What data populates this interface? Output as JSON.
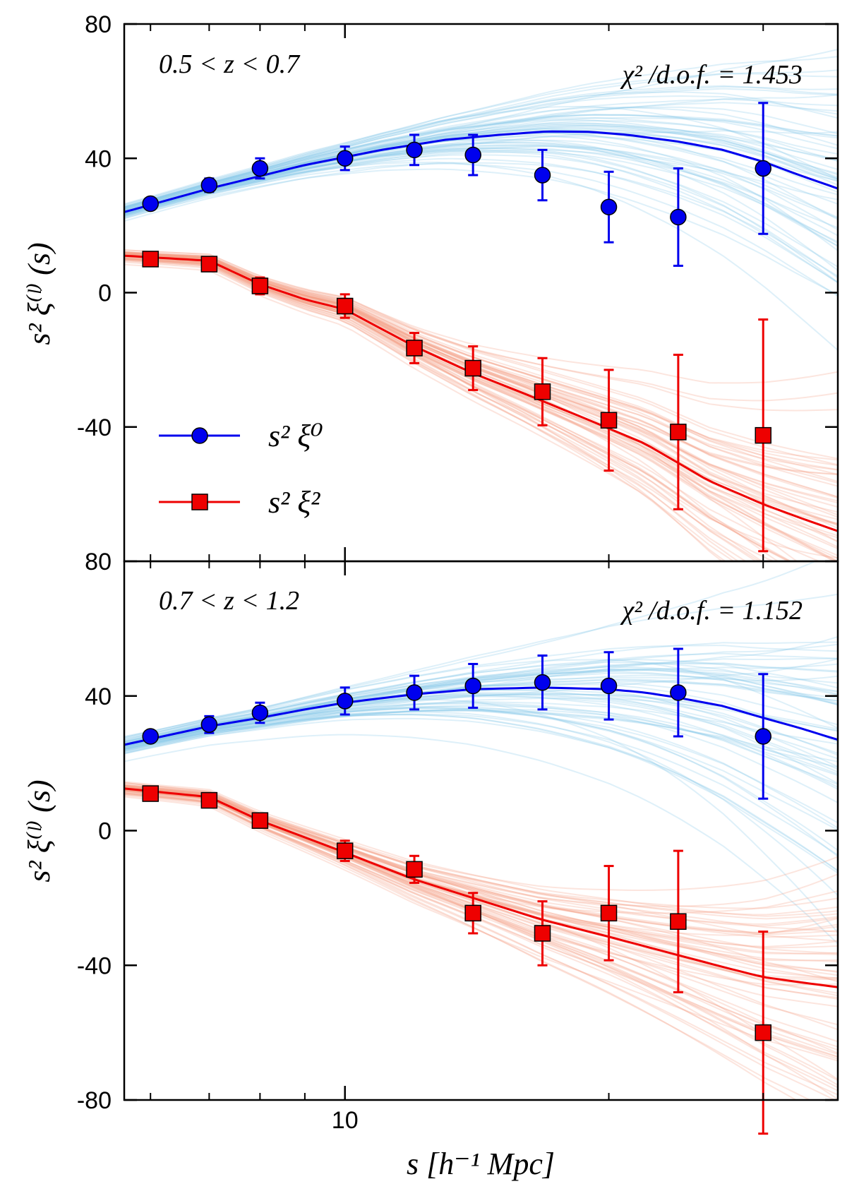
{
  "chart_data": [
    {
      "type": "line",
      "panel": "top",
      "annotation_left": "0.5 < z < 0.7",
      "annotation_right": "χ² /d.o.f. = 1.453",
      "ylabel": "s² ξ⁽ˡ⁾ (s)",
      "xlabel": "s [h⁻¹ Mpc]",
      "xscale": "log",
      "xlim": [
        5.6,
        36.5
      ],
      "ylim": [
        -80,
        80
      ],
      "yticks": [
        80,
        40,
        0,
        -40,
        80
      ],
      "xticks_major": [
        10
      ],
      "legend": {
        "placement": "center-left",
        "entries": [
          "s² ξ⁰",
          "s² ξ²"
        ]
      },
      "series": [
        {
          "name": "s² ξ⁰",
          "color": "#0000ee",
          "marker": "circle",
          "x": [
            6.0,
            7.0,
            8.0,
            10.0,
            12.0,
            14.0,
            16.8,
            20.0,
            24.0,
            30.0
          ],
          "values": [
            26.5,
            32,
            37,
            40,
            42.5,
            41,
            35,
            25.5,
            22.5,
            37
          ],
          "errors": [
            1.5,
            2,
            3,
            3.5,
            4.5,
            6,
            7.5,
            10.5,
            14.5,
            19.5
          ],
          "model_x": [
            5.6,
            7,
            9,
            11,
            13,
            15,
            17,
            19,
            21,
            24,
            27,
            30,
            33,
            36.5
          ],
          "model_y": [
            24,
            31,
            38,
            42.5,
            45.5,
            47,
            48,
            47.9,
            47,
            45,
            42.5,
            39,
            35,
            31
          ]
        },
        {
          "name": "s² ξ²",
          "color": "#ee0000",
          "marker": "square",
          "x": [
            6.0,
            7.0,
            8.0,
            10.0,
            12.0,
            14.0,
            16.8,
            20.0,
            24.0,
            30.0
          ],
          "values": [
            10,
            8.5,
            2,
            -4,
            -16.5,
            -22.5,
            -29.5,
            -38,
            -41.5,
            -42.5
          ],
          "errors": [
            1.5,
            1.5,
            2.5,
            3.5,
            4.5,
            6.5,
            10,
            15,
            23,
            34.5
          ],
          "model_x": [
            5.6,
            7,
            8,
            9,
            10,
            12,
            14,
            16,
            19,
            22,
            26,
            30,
            33,
            36.5
          ],
          "model_y": [
            11,
            9.5,
            2.5,
            -2,
            -5,
            -16,
            -24,
            -30,
            -38,
            -45,
            -56,
            -63,
            -67,
            -71
          ]
        }
      ]
    },
    {
      "type": "line",
      "panel": "bottom",
      "annotation_left": "0.7 < z < 1.2",
      "annotation_right": "χ² /d.o.f. = 1.152",
      "ylabel": "s² ξ⁽ˡ⁾ (s)",
      "xlabel": "s [h⁻¹ Mpc]",
      "xscale": "log",
      "xlim": [
        5.6,
        36.5
      ],
      "ylim": [
        -80,
        80
      ],
      "yticks": [
        40,
        0,
        -40,
        -80
      ],
      "xticks_major": [
        10
      ],
      "series": [
        {
          "name": "s² ξ⁰",
          "color": "#0000ee",
          "marker": "circle",
          "x": [
            6.0,
            7.0,
            8.0,
            10.0,
            12.0,
            14.0,
            16.8,
            20.0,
            24.0,
            30.0
          ],
          "values": [
            28,
            31.5,
            35,
            38.5,
            41,
            43,
            44,
            43,
            41,
            28
          ],
          "errors": [
            1.5,
            2.5,
            3,
            4,
            5,
            6.5,
            8,
            10,
            13,
            18.5
          ],
          "model_x": [
            5.6,
            7,
            8,
            9,
            10,
            12,
            14,
            16.8,
            20,
            22,
            24,
            27,
            30,
            33,
            36.5
          ],
          "model_y": [
            25.5,
            31,
            33.5,
            36,
            38,
            40.5,
            42,
            42.5,
            42,
            41,
            39.5,
            37,
            33.5,
            30.5,
            27
          ]
        },
        {
          "name": "s² ξ²",
          "color": "#ee0000",
          "marker": "square",
          "x": [
            6.0,
            7.0,
            8.0,
            10.0,
            12.0,
            14.0,
            16.8,
            20.0,
            24.0,
            30.0
          ],
          "values": [
            11,
            9,
            3,
            -6,
            -11.5,
            -24.5,
            -30.5,
            -24.5,
            -27,
            -60
          ],
          "errors": [
            1.5,
            1.5,
            2,
            3,
            4,
            6,
            9.5,
            14,
            21,
            30
          ],
          "model_x": [
            5.6,
            7,
            8,
            9,
            10,
            12,
            14,
            16.8,
            20,
            24,
            27,
            30,
            33,
            36.5
          ],
          "model_y": [
            12.5,
            10,
            3,
            -2,
            -6.5,
            -14.5,
            -20,
            -26.5,
            -31.5,
            -37,
            -40.5,
            -43.5,
            -45,
            -46.5
          ]
        }
      ]
    }
  ],
  "colors": {
    "monopole": "#0000ee",
    "quadrupole": "#ee0000",
    "monopole_band": "#87c8ea",
    "quadrupole_band": "#f4a08a"
  }
}
